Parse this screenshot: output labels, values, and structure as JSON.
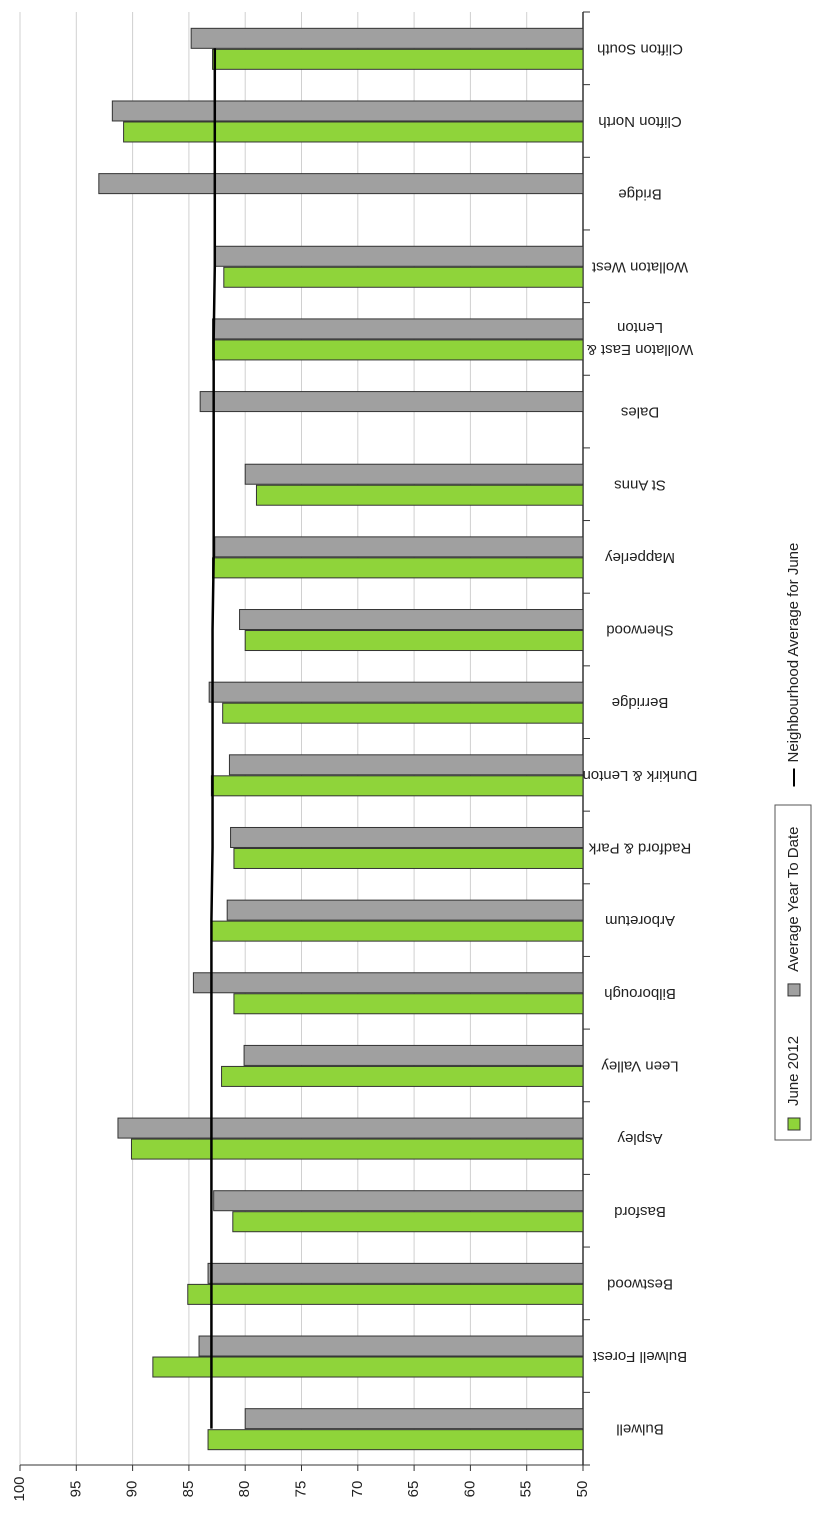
{
  "chart_data": {
    "type": "bar",
    "categories": [
      "Bulwell",
      "Bulwell Forest",
      "Bestwood",
      "Basford",
      "Aspley",
      "Leen Valley",
      "Bilborough",
      "Arboretum",
      "Radford & Park",
      "Dunkirk & Lenton",
      "Berridge",
      "Sherwood",
      "Mapperley",
      "St Anns",
      "Dales",
      "Wollaton East & Lenton",
      "Wollaton West",
      "Bridge",
      "Clifton North",
      "Clifton South"
    ],
    "series": [
      {
        "name": "June 2012",
        "color": "#8fd43a",
        "values": [
          83.3,
          88.2,
          85.1,
          81.1,
          90.1,
          82.1,
          81,
          83,
          81,
          83,
          82,
          80,
          82.9,
          79,
          null,
          82.9,
          81.9,
          null,
          90.8,
          82.9
        ]
      },
      {
        "name": "Average Year To Date",
        "color": "#a0a0a0",
        "values": [
          80,
          84.1,
          83.3,
          82.8,
          91.3,
          80.1,
          84.6,
          81.6,
          81.3,
          81.4,
          83.2,
          80.5,
          82.7,
          80,
          84,
          82.9,
          82.7,
          93,
          91.8,
          84.8
        ]
      },
      {
        "name": "Neighbourhood Average for June",
        "color": "#000000",
        "type": "line",
        "values": [
          83,
          83,
          83,
          83,
          83,
          83,
          83,
          83,
          82.9,
          82.9,
          82.9,
          82.9,
          82.8,
          82.8,
          82.8,
          82.8,
          82.7,
          82.7,
          82.7,
          82.7
        ]
      }
    ],
    "ylim": [
      50,
      100
    ],
    "yticks": [
      50,
      55,
      60,
      65,
      70,
      75,
      80,
      85,
      90,
      95,
      100
    ],
    "grid": true,
    "legend": "right"
  }
}
